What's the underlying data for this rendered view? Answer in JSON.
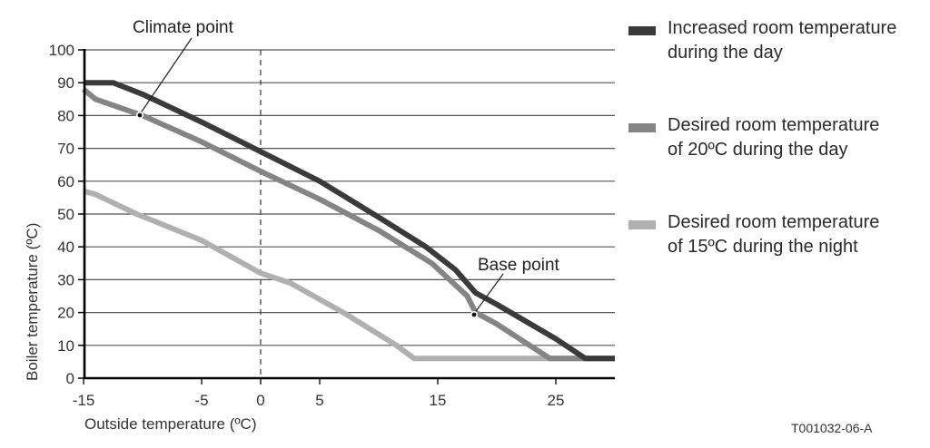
{
  "chart_data": {
    "type": "line",
    "title": "",
    "xlabel": "Outside temperature (ºC)",
    "ylabel": "Boiler temperature (ºC)",
    "xlim": [
      -15,
      30
    ],
    "ylim": [
      0,
      100
    ],
    "x_ticks": [
      -15,
      -5,
      0,
      5,
      15,
      25
    ],
    "y_ticks": [
      0,
      10,
      20,
      30,
      40,
      50,
      60,
      70,
      80,
      90,
      100
    ],
    "grid": "horizontal",
    "reference_line": {
      "x": 0,
      "style": "dashed"
    },
    "legend_position": "right",
    "series": [
      {
        "name": "Increased room temperature during the day",
        "color": "#3a3a3a",
        "points": [
          [
            -15,
            90
          ],
          [
            -12.5,
            90
          ],
          [
            -10,
            86.5
          ],
          [
            -5,
            78
          ],
          [
            0,
            69
          ],
          [
            5,
            60
          ],
          [
            10,
            49
          ],
          [
            14,
            40
          ],
          [
            16.5,
            33
          ],
          [
            18.2,
            26
          ],
          [
            20,
            22.5
          ],
          [
            25,
            12
          ],
          [
            27.5,
            6
          ],
          [
            30,
            6
          ]
        ]
      },
      {
        "name": "Desired room temperature of 20ºC during the day",
        "color": "#858585",
        "points": [
          [
            -15,
            88
          ],
          [
            -14,
            85
          ],
          [
            -10,
            80
          ],
          [
            -5,
            72
          ],
          [
            0,
            63
          ],
          [
            5,
            54.5
          ],
          [
            10,
            45
          ],
          [
            14.5,
            35
          ],
          [
            17.5,
            25
          ],
          [
            18.2,
            20
          ],
          [
            20,
            16.5
          ],
          [
            23,
            9.5
          ],
          [
            24.5,
            6
          ],
          [
            30,
            6
          ]
        ]
      },
      {
        "name": "Desired room temperature of 15ºC during the night",
        "color": "#b0b0b0",
        "points": [
          [
            -15,
            57
          ],
          [
            -14,
            56
          ],
          [
            -10.5,
            50
          ],
          [
            -5,
            42
          ],
          [
            -2.5,
            37
          ],
          [
            0,
            32
          ],
          [
            2.5,
            29
          ],
          [
            7,
            20
          ],
          [
            11.5,
            10
          ],
          [
            13,
            6
          ],
          [
            30,
            6
          ]
        ]
      }
    ],
    "annotations": [
      {
        "text": "Climate point",
        "x": -10,
        "y": 80
      },
      {
        "text": "Base point",
        "x": 18.2,
        "y": 20
      }
    ]
  },
  "annotations": {
    "climate_point": "Climate point",
    "base_point": "Base point"
  },
  "axes": {
    "x_title": "Outside temperature (ºC)",
    "y_title": "Boiler temperature (ºC)"
  },
  "legend": [
    {
      "label": "Increased room temperature\nduring the day",
      "color": "#3a3a3a"
    },
    {
      "label": "Desired room temperature\nof 20ºC during the day",
      "color": "#858585"
    },
    {
      "label": "Desired room temperature\nof 15ºC during the night",
      "color": "#b0b0b0"
    }
  ],
  "figure_id": "T001032-06-A"
}
